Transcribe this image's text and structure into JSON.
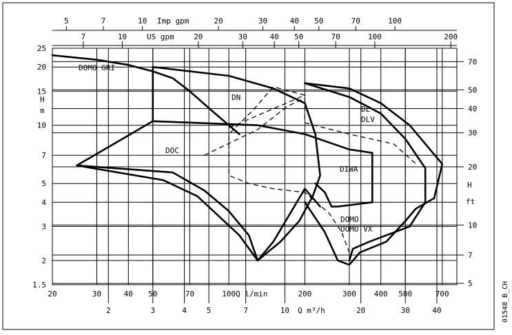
{
  "chart_data": {
    "type": "line",
    "title": "",
    "axes": {
      "bottom_primary": {
        "label": "Q l/min",
        "scale": "log",
        "range": [
          20,
          800
        ],
        "ticks": [
          "20",
          "30",
          "40",
          "50",
          "70",
          "100",
          "200",
          "300",
          "400",
          "500",
          "700"
        ],
        "tick_values": [
          20,
          30,
          40,
          50,
          70,
          100,
          200,
          300,
          400,
          500,
          700
        ]
      },
      "bottom_secondary": {
        "label": "Q m³/h",
        "scale": "log",
        "ticks": [
          "2",
          "3",
          "4",
          "5",
          "7",
          "10",
          "20",
          "30",
          "40"
        ],
        "tick_values": [
          2,
          3,
          4,
          5,
          7,
          10,
          20,
          30,
          40
        ]
      },
      "top_imp": {
        "label": "Imp gpm",
        "scale": "log",
        "ticks": [
          "5",
          "7",
          "10",
          "20",
          "30",
          "40",
          "50",
          "70",
          "100"
        ],
        "tick_values": [
          5,
          7,
          10,
          20,
          30,
          40,
          50,
          70,
          100
        ]
      },
      "top_us": {
        "label": "US gpm",
        "scale": "log",
        "ticks": [
          "7",
          "10",
          "20",
          "30",
          "40",
          "50",
          "70",
          "100",
          "200"
        ],
        "tick_values": [
          7,
          10,
          20,
          30,
          40,
          50,
          70,
          100,
          200
        ]
      },
      "left": {
        "label": "H m",
        "scale": "log",
        "range": [
          1.5,
          25
        ],
        "ticks": [
          "1.5",
          "2",
          "3",
          "4",
          "5",
          "7",
          "10",
          "15",
          "20",
          "25"
        ],
        "tick_values": [
          1.5,
          2,
          3,
          4,
          5,
          7,
          10,
          15,
          20,
          25
        ]
      },
      "right": {
        "label": "H ft",
        "scale": "log",
        "ticks": [
          "5",
          "7",
          "10",
          "20",
          "30",
          "40",
          "50",
          "70"
        ],
        "tick_values": [
          5,
          7,
          10,
          20,
          30,
          40,
          50,
          70
        ]
      }
    },
    "grid": true,
    "series": [
      {
        "name": "DOMO GRI",
        "style": "solid",
        "points": [
          [
            20,
            23
          ],
          [
            30,
            21.8
          ],
          [
            40,
            20.5
          ],
          [
            50,
            19
          ],
          [
            60,
            17.5
          ],
          [
            70,
            15
          ],
          [
            85,
            12
          ],
          [
            100,
            10
          ],
          [
            110,
            9
          ]
        ]
      },
      {
        "name": "DN",
        "style": "solid",
        "points": [
          [
            50,
            20
          ],
          [
            100,
            18
          ],
          [
            150,
            15.5
          ],
          [
            200,
            13
          ],
          [
            220,
            9
          ],
          [
            230,
            5.5
          ],
          [
            215,
            4.3
          ],
          [
            190,
            3.2
          ],
          [
            160,
            2.5
          ],
          [
            130,
            2
          ],
          [
            110,
            2.7
          ],
          [
            75,
            4.3
          ],
          [
            55,
            5.2
          ],
          [
            25,
            6.2
          ],
          [
            50,
            10.5
          ],
          [
            50,
            20
          ]
        ]
      },
      {
        "name": "DL DLV",
        "style": "solid",
        "points": [
          [
            200,
            16.5
          ],
          [
            300,
            15.5
          ],
          [
            400,
            13
          ],
          [
            520,
            10
          ],
          [
            700,
            6.3
          ],
          [
            650,
            4.2
          ],
          [
            550,
            3.7
          ],
          [
            500,
            3.2
          ],
          [
            420,
            2.5
          ],
          [
            330,
            2.2
          ],
          [
            300,
            1.9
          ],
          [
            270,
            2
          ],
          [
            240,
            2.8
          ],
          [
            200,
            4
          ]
        ]
      },
      {
        "name": "DIWA",
        "style": "solid",
        "points": [
          [
            50,
            10.5
          ],
          [
            130,
            10
          ],
          [
            200,
            9
          ],
          [
            300,
            7.5
          ],
          [
            370,
            7.2
          ],
          [
            370,
            4
          ],
          [
            270,
            3.8
          ],
          [
            255,
            3.8
          ],
          [
            240,
            4.5
          ],
          [
            220,
            5
          ]
        ]
      },
      {
        "name": "DOMO DOMO VX",
        "style": "solid",
        "points": [
          [
            200,
            16.5
          ],
          [
            300,
            14
          ],
          [
            400,
            11.5
          ],
          [
            500,
            8.5
          ],
          [
            600,
            6
          ],
          [
            600,
            4
          ],
          [
            520,
            3
          ],
          [
            360,
            2.5
          ],
          [
            310,
            2.3
          ],
          [
            300,
            2
          ]
        ]
      },
      {
        "name": "DOC",
        "style": "solid",
        "points": [
          [
            25,
            6.2
          ],
          [
            60,
            5.7
          ],
          [
            80,
            4.6
          ],
          [
            100,
            3.6
          ],
          [
            120,
            2.7
          ],
          [
            130,
            2
          ],
          [
            150,
            2.5
          ],
          [
            200,
            4.7
          ],
          [
            230,
            3.8
          ]
        ]
      },
      {
        "name": "",
        "style": "dashed",
        "points": [
          [
            100,
            9.7
          ],
          [
            200,
            14.3
          ],
          [
            150,
            15.8
          ],
          [
            125,
            12
          ],
          [
            100,
            9
          ],
          [
            100,
            5.5
          ],
          [
            120,
            5
          ],
          [
            150,
            4.7
          ],
          [
            200,
            4.5
          ],
          [
            250,
            3.5
          ],
          [
            280,
            2.8
          ],
          [
            300,
            2.2
          ]
        ]
      },
      {
        "name": "",
        "style": "dashed",
        "points": [
          [
            80,
            7
          ],
          [
            130,
            9.5
          ],
          [
            170,
            12.5
          ],
          [
            200,
            13.8
          ],
          [
            200,
            10.3
          ],
          [
            300,
            9
          ],
          [
            450,
            8
          ],
          [
            560,
            6.2
          ]
        ]
      }
    ],
    "annotations": [
      "DOMO GRI",
      "DN",
      "DL",
      "DLV",
      "DOC",
      "DIWA",
      "DOMO",
      "DOMO VX",
      "H",
      "ft",
      "H",
      "m"
    ]
  },
  "image_code": "01548_B_CH"
}
